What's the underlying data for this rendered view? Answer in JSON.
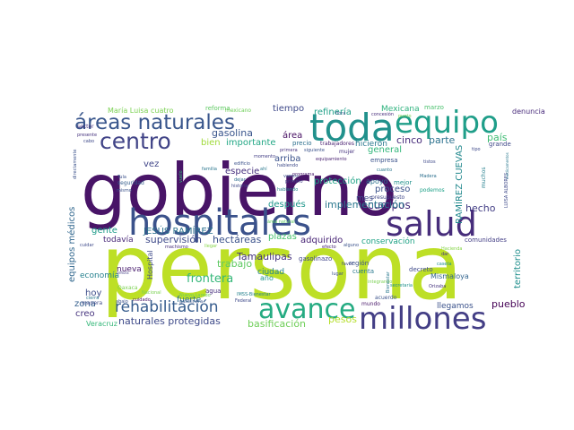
{
  "wordcloud": {
    "words": [
      {
        "text": "persona",
        "color": "#bddf26"
      },
      {
        "text": "gobierno",
        "color": "#481467"
      },
      {
        "text": "hospitales",
        "color": "#3b528b"
      },
      {
        "text": "salud",
        "color": "#472d7b"
      },
      {
        "text": "millones",
        "color": "#433e85"
      },
      {
        "text": "toda",
        "color": "#21918c"
      },
      {
        "text": "equipo",
        "color": "#1f9e89"
      },
      {
        "text": "avance",
        "color": "#25ab82"
      },
      {
        "text": "áreas naturales",
        "color": "#39568c"
      },
      {
        "text": "centro",
        "color": "#414487"
      },
      {
        "text": "rehabilitación",
        "color": "#365c8d"
      },
      {
        "text": "naturales protegidas",
        "color": "#3e4a89"
      },
      {
        "text": "supervisión",
        "color": "#3e4989"
      },
      {
        "text": "hectáreas",
        "color": "#3b528b"
      },
      {
        "text": "adquirido",
        "color": "#482475"
      },
      {
        "text": "después",
        "color": "#1f968b"
      },
      {
        "text": "frontera",
        "color": "#35b779"
      },
      {
        "text": "Tamaulipas",
        "color": "#46337e"
      },
      {
        "text": "trabajo",
        "color": "#5ec962"
      },
      {
        "text": "basificación",
        "color": "#6ece58"
      },
      {
        "text": "pesos",
        "color": "#b5de2b"
      },
      {
        "text": "pueblo",
        "color": "#440154"
      },
      {
        "text": "hecho",
        "color": "#433e85"
      },
      {
        "text": "cuerpos",
        "color": "#472c7a"
      },
      {
        "text": "implementación",
        "color": "#2a788e"
      },
      {
        "text": "protección",
        "color": "#20a386"
      },
      {
        "text": "proceso",
        "color": "#3b528b"
      },
      {
        "text": "general",
        "color": "#32b67a"
      },
      {
        "text": "cinco",
        "color": "#472d7b"
      },
      {
        "text": "parte",
        "color": "#2c728e"
      },
      {
        "text": "país",
        "color": "#3fbc73"
      },
      {
        "text": "refinería",
        "color": "#1fa088"
      },
      {
        "text": "Mexicana",
        "color": "#2db27d"
      },
      {
        "text": "gasolina",
        "color": "#39558c"
      },
      {
        "text": "importante",
        "color": "#22a785"
      },
      {
        "text": "tiempo",
        "color": "#3e4989"
      },
      {
        "text": "área",
        "color": "#471063"
      },
      {
        "text": "arriba",
        "color": "#3b528b"
      },
      {
        "text": "especie",
        "color": "#46307e"
      },
      {
        "text": "JESÚS RAMÍREZ",
        "color": "#2c718e"
      },
      {
        "text": "RAMÍREZ CUEVAS",
        "color": "#23898e"
      },
      {
        "text": "territorio",
        "color": "#218f8d"
      },
      {
        "text": "equipos médicos",
        "color": "#31678e"
      },
      {
        "text": "economía",
        "color": "#26818e"
      },
      {
        "text": "hoy",
        "color": "#3d4d8a"
      },
      {
        "text": "zona",
        "color": "#355f8d"
      },
      {
        "text": "creo",
        "color": "#46337e"
      },
      {
        "text": "gente",
        "color": "#1e9c89"
      },
      {
        "text": "todavía",
        "color": "#482878"
      },
      {
        "text": "vez",
        "color": "#404588"
      },
      {
        "text": "plazas",
        "color": "#48c16e"
      },
      {
        "text": "conservación",
        "color": "#20a386"
      },
      {
        "text": "Mismaloya",
        "color": "#32648e"
      },
      {
        "text": "mes",
        "color": "#3d4e8a"
      },
      {
        "text": "hicieron",
        "color": "#2a788e"
      },
      {
        "text": "bien",
        "color": "#a0da39"
      },
      {
        "text": "denuncia",
        "color": "#472a7a"
      },
      {
        "text": "marzo",
        "color": "#4ac16d"
      },
      {
        "text": "grande",
        "color": "#3f4889"
      },
      {
        "text": "reforma",
        "color": "#5ec962"
      },
      {
        "text": "María Luisa cuatro",
        "color": "#7ad151"
      },
      {
        "text": "Veracruz",
        "color": "#35b779"
      },
      {
        "text": "llegamos",
        "color": "#3b528b"
      },
      {
        "text": "comunidades",
        "color": "#433e85"
      },
      {
        "text": "ciudad",
        "color": "#26828e"
      },
      {
        "text": "fuerte",
        "color": "#2c728e"
      },
      {
        "text": "nueva",
        "color": "#481b6d"
      },
      {
        "text": "Hospital",
        "color": "#3e4989"
      },
      {
        "text": "agua",
        "color": "#472f7d"
      },
      {
        "text": "gasolinazo",
        "color": "#404588"
      },
      {
        "text": "región",
        "color": "#3b528b"
      },
      {
        "text": "cuenta",
        "color": "#2a788e"
      },
      {
        "text": "decreto",
        "color": "#3e4989"
      },
      {
        "text": "mundo",
        "color": "#481769"
      },
      {
        "text": "acuerdo",
        "color": "#3b528b"
      },
      {
        "text": "Oaxaca",
        "color": "#7ad151"
      },
      {
        "text": "manera",
        "color": "#3e4989"
      },
      {
        "text": "apoyo",
        "color": "#2d708e"
      },
      {
        "text": "empresa",
        "color": "#3b528b"
      },
      {
        "text": "mejor",
        "color": "#21918c"
      },
      {
        "text": "sector",
        "color": "#46327e"
      },
      {
        "text": "seguridad",
        "color": "#355e8d"
      },
      {
        "text": "mujer",
        "color": "#46327e"
      },
      {
        "text": "cuanto",
        "color": "#2a778e"
      },
      {
        "text": "muchos",
        "color": "#27808e"
      },
      {
        "text": "precio",
        "color": "#2d708e"
      },
      {
        "text": "trabajadores",
        "color": "#481f70"
      },
      {
        "text": "presupuesto",
        "color": "#3f4788"
      },
      {
        "text": "podemos",
        "color": "#1fa188"
      },
      {
        "text": "tipo",
        "color": "#3e4989"
      },
      {
        "text": "concesión",
        "color": "#472d7b"
      },
      {
        "text": "mexicano",
        "color": "#6ece58"
      },
      {
        "text": "flora",
        "color": "#38598c"
      },
      {
        "text": "año",
        "color": "#1f968b"
      },
      {
        "text": "programa",
        "color": "#481a6c"
      },
      {
        "text": "edificio",
        "color": "#3b518b"
      },
      {
        "text": "habiendo",
        "color": "#3e4a89"
      },
      {
        "text": "familia",
        "color": "#2a768e"
      },
      {
        "text": "dejar",
        "color": "#2e6d8e"
      },
      {
        "text": "hablando",
        "color": "#26828e"
      },
      {
        "text": "alguno",
        "color": "#3b528b"
      },
      {
        "text": "primero",
        "color": "#414287"
      },
      {
        "text": "Madera",
        "color": "#2d708e"
      },
      {
        "text": "integrando",
        "color": "#7ad151"
      },
      {
        "text": "secretaria",
        "color": "#21918c"
      },
      {
        "text": "Orizaba",
        "color": "#46337e"
      },
      {
        "text": "LUISA ALBORES",
        "color": "#3e4989"
      },
      {
        "text": "Nacional",
        "color": "#7ad151"
      },
      {
        "text": "medicamentos",
        "color": "#2a788e"
      },
      {
        "text": "cuidado",
        "color": "#481467"
      },
      {
        "text": "gasolinera",
        "color": "#3b528b"
      },
      {
        "text": "Nuevo Laredo",
        "color": "#6ece58"
      },
      {
        "text": "IMSS-Bienestar",
        "color": "#26828e"
      },
      {
        "text": "Federal",
        "color": "#3e4989"
      },
      {
        "text": "llegar",
        "color": "#86d549"
      },
      {
        "text": "efecto",
        "color": "#482475"
      },
      {
        "text": "lugar",
        "color": "#3b528b"
      },
      {
        "text": "caseta",
        "color": "#21918c"
      },
      {
        "text": "dar",
        "color": "#46337e"
      },
      {
        "text": "machismo",
        "color": "#472d7b"
      },
      {
        "text": "cuidar",
        "color": "#3e4989"
      },
      {
        "text": "abajo",
        "color": "#3b528b"
      },
      {
        "text": "cierra",
        "color": "#2a788e"
      },
      {
        "text": "señora",
        "color": "#433e85"
      },
      {
        "text": "directamente",
        "color": "#3b528b"
      },
      {
        "text": "presente",
        "color": "#46337e"
      },
      {
        "text": "cabo",
        "color": "#3e4989"
      },
      {
        "text": "Tula",
        "color": "#3b528b"
      },
      {
        "text": "vuelo",
        "color": "#35b779"
      },
      {
        "text": "historia",
        "color": "#3e4989"
      },
      {
        "text": "equipamiento",
        "color": "#481f70"
      },
      {
        "text": "mismo",
        "color": "#3b528b"
      },
      {
        "text": "Bienestar",
        "color": "#2a788e"
      },
      {
        "text": "Hacienda",
        "color": "#86d549"
      },
      {
        "text": "tistos",
        "color": "#3e4989"
      },
      {
        "text": "siguiente",
        "color": "#3b528b"
      },
      {
        "text": "primera",
        "color": "#46337e"
      },
      {
        "text": "momento",
        "color": "#433e85"
      },
      {
        "text": "vamos",
        "color": "#3b528b"
      },
      {
        "text": "ahí",
        "color": "#2a788e"
      },
      {
        "text": "favor",
        "color": "#3e4989"
      },
      {
        "text": "punto",
        "color": "#7ad151"
      },
      {
        "text": "área natural",
        "color": "#5ec962"
      }
    ]
  }
}
